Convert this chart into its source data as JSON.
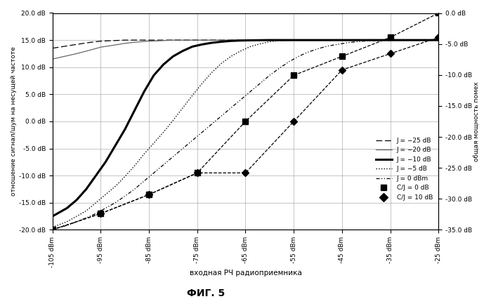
{
  "title": "ФИГ. 5",
  "xlabel": "входная РЧ радиоприемника",
  "ylabel_left": "отношение сигнал/шум на несущей частоте",
  "ylabel_right": "общая мощность помех",
  "x_values": [
    -105,
    -95,
    -85,
    -75,
    -65,
    -55,
    -45,
    -35,
    -25
  ],
  "x_ticks_labels": [
    "-105 dBm",
    "-95 dBm",
    "-85 dBm",
    "-75 dBm",
    "-65 dBm",
    "-55 dBm",
    "-45 dBm",
    "-35 dBm",
    "-25 dBm"
  ],
  "ylim_left": [
    -20,
    20
  ],
  "ylim_right": [
    -35,
    0
  ],
  "yticks_left": [
    -20,
    -15,
    -10,
    -5,
    0,
    5,
    10,
    15,
    20
  ],
  "yticks_right": [
    -35,
    -30,
    -25,
    -20,
    -15,
    -10,
    -5,
    0
  ],
  "ytick_labels_left": [
    "-20.0 dB",
    "-15.0 dB",
    "-10.0 dB",
    "-5.0 dB",
    "0.0 dB",
    "5.0 dB",
    "10.0 dB",
    "15.0 dB",
    "20.0 dB"
  ],
  "ytick_labels_right": [
    "-35.0 dB",
    "-30.0 dB",
    "-25.0 dB",
    "-20.0 dB",
    "-15.0 dB",
    "-10.0 dB",
    "-5.0 dB",
    "0.0 dB"
  ],
  "J_minus25_x": [
    -105,
    -100,
    -97,
    -95,
    -90,
    -85,
    -80,
    -75,
    -70,
    -65,
    -60,
    -55,
    -50,
    -45,
    -40,
    -35,
    -30,
    -25
  ],
  "J_minus25_y": [
    13.5,
    14.2,
    14.6,
    14.8,
    15.0,
    15.0,
    15.0,
    15.0,
    15.0,
    15.0,
    15.0,
    15.0,
    15.0,
    15.0,
    15.0,
    15.0,
    15.0,
    15.0
  ],
  "J_minus20_x": [
    -105,
    -100,
    -97,
    -95,
    -92,
    -90,
    -88,
    -85,
    -82,
    -80,
    -78,
    -75,
    -70,
    -65,
    -60,
    -55,
    -50,
    -45,
    -40,
    -35,
    -30,
    -25
  ],
  "J_minus20_y": [
    11.5,
    12.5,
    13.2,
    13.7,
    14.1,
    14.4,
    14.6,
    14.8,
    14.9,
    15.0,
    15.0,
    15.0,
    15.0,
    15.0,
    15.0,
    15.0,
    15.0,
    15.0,
    15.0,
    15.0,
    15.0,
    15.0
  ],
  "J_minus10_x": [
    -105,
    -102,
    -100,
    -98,
    -96,
    -94,
    -92,
    -90,
    -88,
    -86,
    -84,
    -82,
    -80,
    -78,
    -76,
    -74,
    -72,
    -70,
    -68,
    -66,
    -64,
    -62,
    -60,
    -55,
    -50,
    -45,
    -35,
    -25
  ],
  "J_minus10_y": [
    -17.5,
    -16.0,
    -14.5,
    -12.5,
    -10.0,
    -7.5,
    -4.5,
    -1.5,
    2.0,
    5.5,
    8.5,
    10.5,
    12.0,
    13.0,
    13.8,
    14.2,
    14.5,
    14.7,
    14.85,
    14.92,
    14.96,
    14.98,
    15.0,
    15.0,
    15.0,
    15.0,
    15.0,
    15.0
  ],
  "J_minus5_x": [
    -105,
    -102,
    -100,
    -98,
    -96,
    -94,
    -92,
    -90,
    -88,
    -86,
    -84,
    -82,
    -80,
    -78,
    -76,
    -74,
    -72,
    -70,
    -68,
    -66,
    -64,
    -62,
    -60,
    -58,
    -56,
    -55,
    -50,
    -45,
    -35,
    -25
  ],
  "J_minus5_y": [
    -19.5,
    -18.5,
    -17.5,
    -16.5,
    -15.0,
    -13.5,
    -12.0,
    -10.2,
    -8.2,
    -6.0,
    -4.0,
    -2.0,
    0.2,
    2.5,
    4.8,
    7.0,
    9.0,
    10.7,
    12.0,
    13.0,
    13.8,
    14.3,
    14.7,
    14.9,
    14.97,
    15.0,
    15.0,
    15.0,
    15.0,
    15.0
  ],
  "J_0_x": [
    -105,
    -102,
    -100,
    -98,
    -96,
    -94,
    -92,
    -90,
    -88,
    -86,
    -84,
    -82,
    -80,
    -78,
    -76,
    -74,
    -72,
    -70,
    -68,
    -66,
    -64,
    -62,
    -60,
    -58,
    -56,
    -54,
    -52,
    -50,
    -48,
    -46,
    -44,
    -42,
    -40,
    -38,
    -36,
    -35,
    -30,
    -25
  ],
  "J_0_y": [
    -19.8,
    -19.2,
    -18.5,
    -17.8,
    -17.0,
    -16.0,
    -15.0,
    -13.8,
    -12.5,
    -11.0,
    -9.5,
    -8.0,
    -6.5,
    -5.0,
    -3.5,
    -2.0,
    -0.5,
    1.0,
    2.5,
    4.0,
    5.5,
    7.0,
    8.5,
    9.8,
    11.0,
    12.0,
    12.8,
    13.4,
    13.9,
    14.2,
    14.5,
    14.7,
    14.85,
    14.92,
    14.97,
    15.0,
    15.0,
    15.0
  ],
  "CJ0_x": [
    -105,
    -95,
    -85,
    -75,
    -65,
    -55,
    -45,
    -35,
    -25
  ],
  "CJ0_y": [
    -20.0,
    -17.0,
    -13.5,
    -9.5,
    0.0,
    8.5,
    12.0,
    15.5,
    20.0
  ],
  "CJ10_x": [
    -105,
    -95,
    -85,
    -75,
    -65,
    -55,
    -45,
    -35,
    -25
  ],
  "CJ10_y": [
    -20.0,
    -17.0,
    -13.5,
    -9.5,
    -9.5,
    0.0,
    9.5,
    12.5,
    15.5
  ],
  "background_color": "#ffffff"
}
